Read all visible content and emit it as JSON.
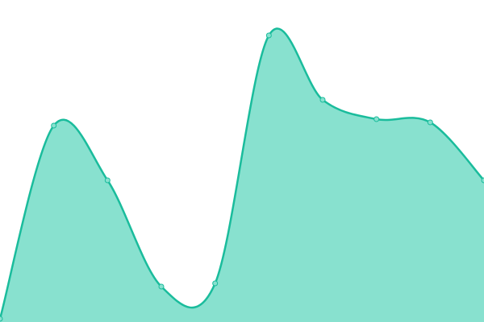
{
  "chart_data": {
    "type": "area",
    "values": [
      1,
      61,
      44,
      11,
      12,
      89,
      69,
      63,
      62,
      44
    ],
    "ylim": [
      0,
      100
    ],
    "color": "#1abc9c",
    "fill": "#88e1cf"
  }
}
